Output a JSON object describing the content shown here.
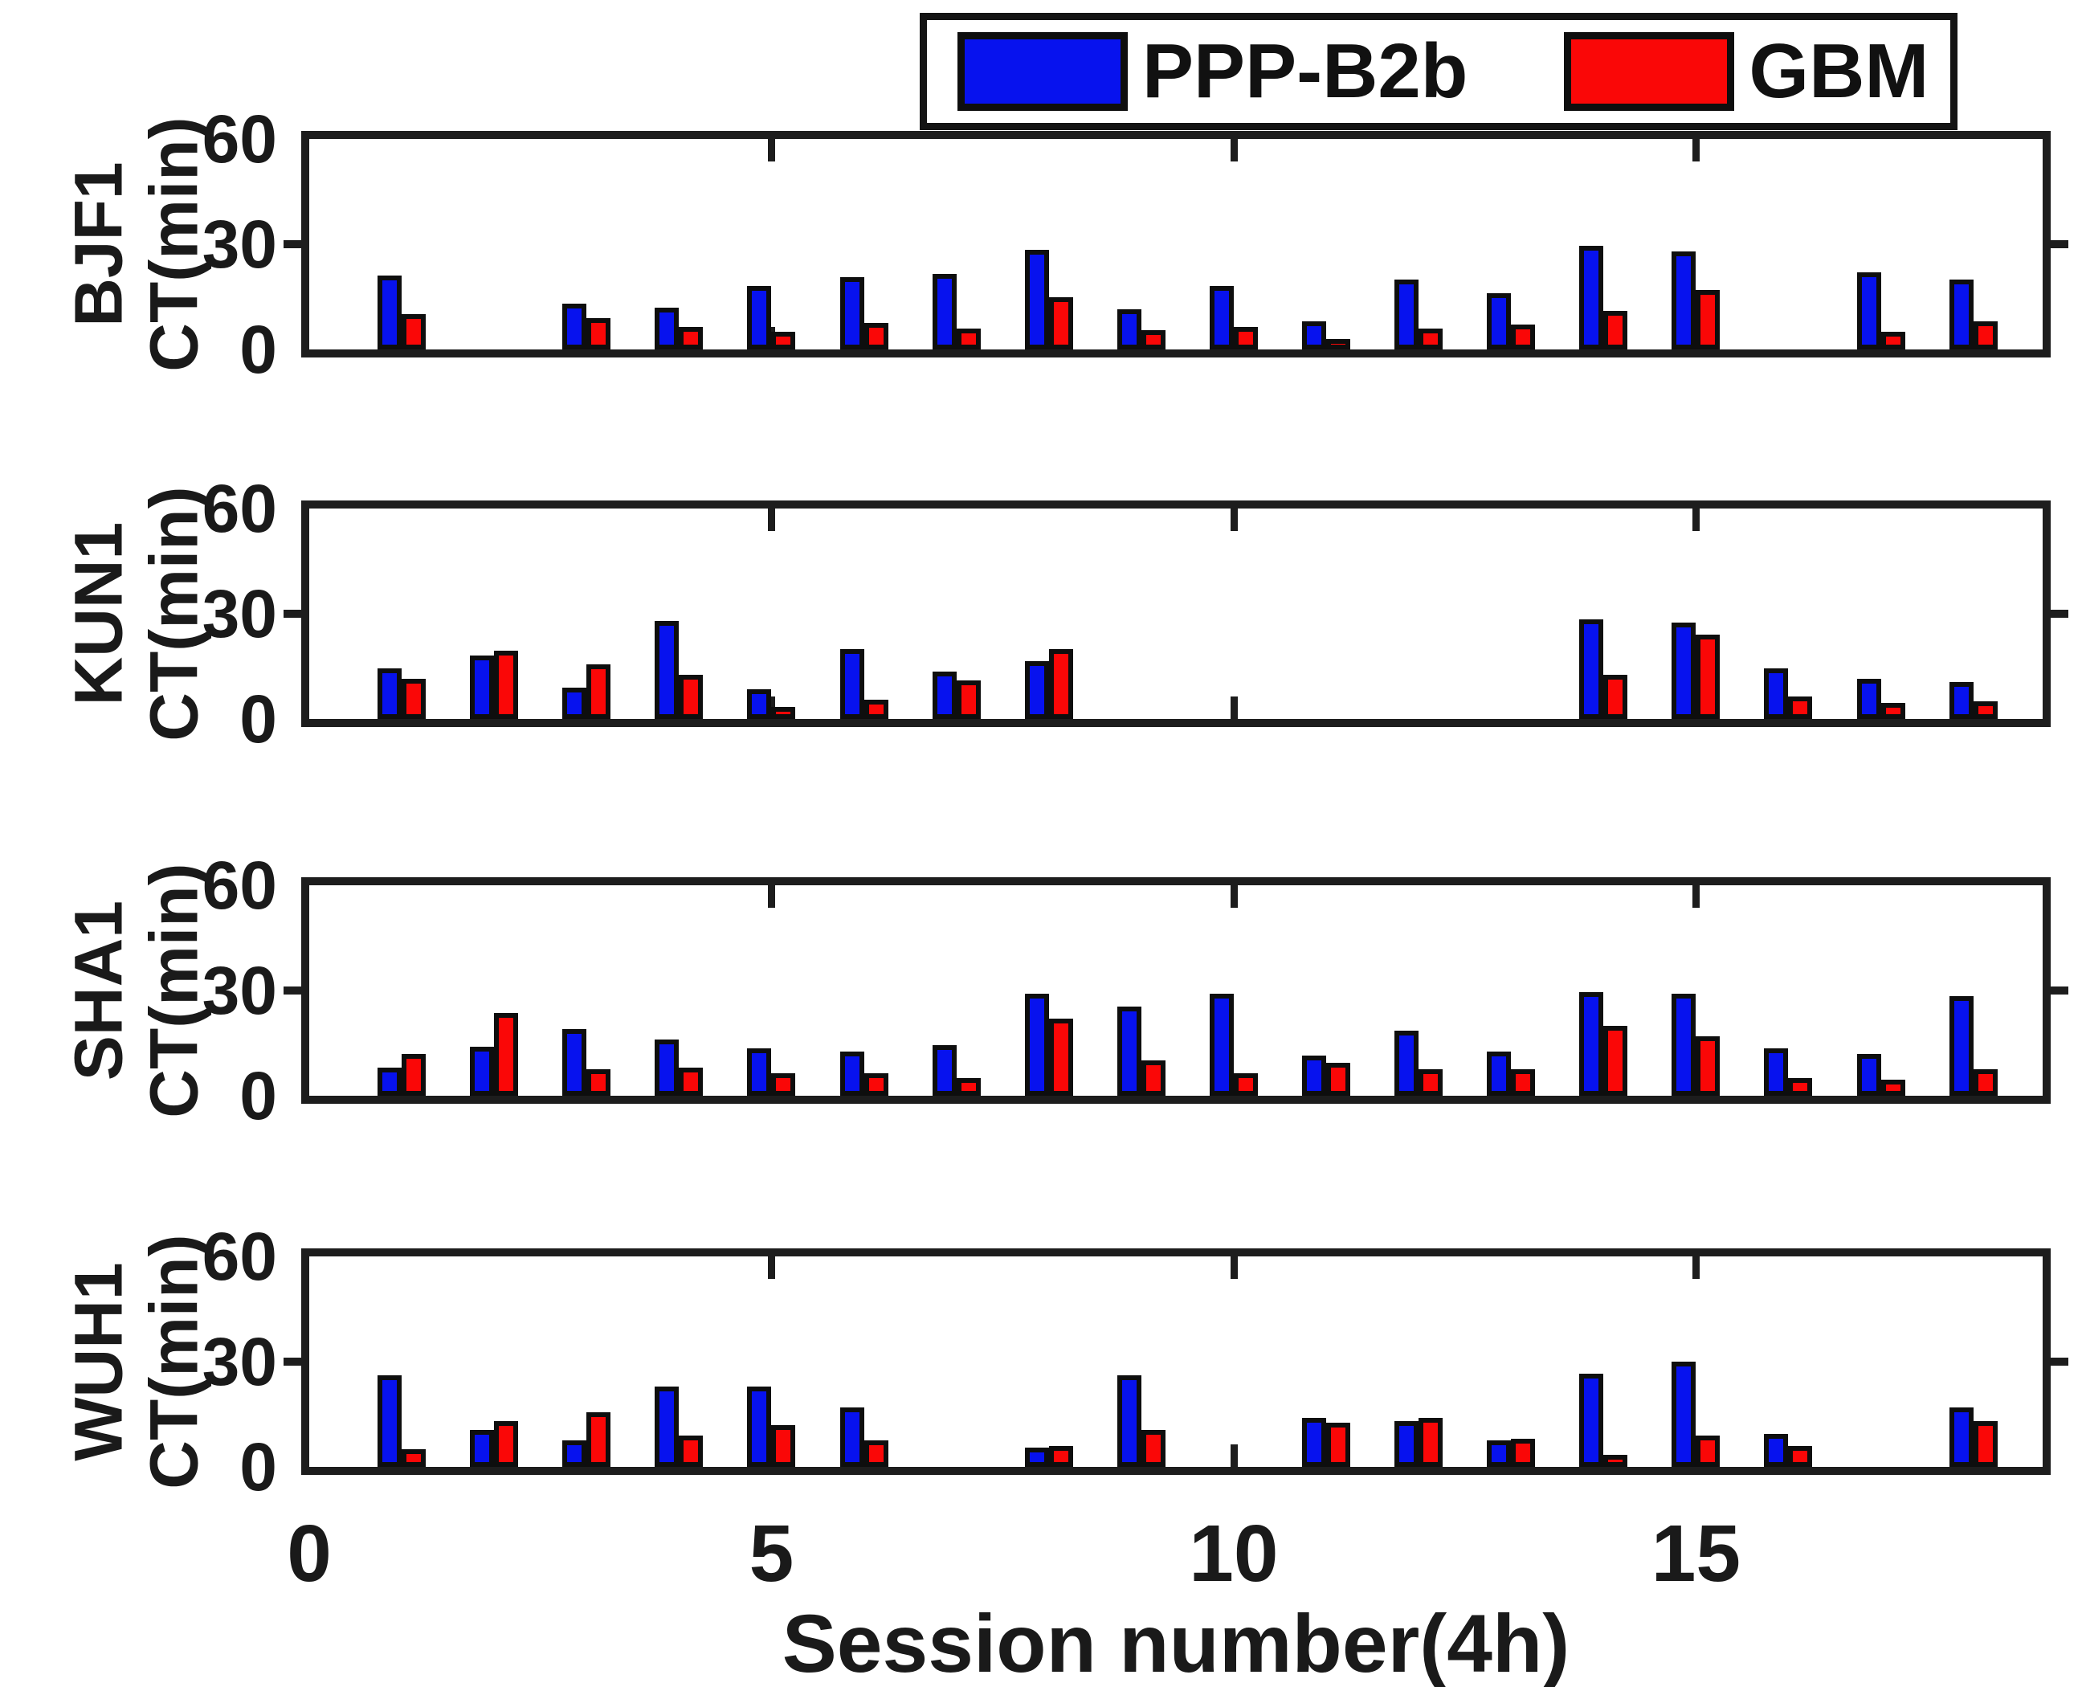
{
  "figure": {
    "xlabel": "Session number(4h)"
  },
  "legend": {
    "items": [
      {
        "label": "PPP-B2b",
        "color": "#0712ee"
      },
      {
        "label": "GBM",
        "color": "#fa0707"
      }
    ]
  },
  "chart_data": {
    "type": "bar",
    "title": "",
    "xlabel": "Session number(4h)",
    "ylabel_unit": "CT(min)",
    "xlim": [
      0,
      18.75
    ],
    "xticks": [
      0,
      5,
      10,
      15
    ],
    "ylim": [
      0,
      60
    ],
    "yticks": [
      0,
      30,
      60
    ],
    "grid": false,
    "legend_position": "top-center",
    "bar_colors": {
      "PPP-B2b": "#0712ee",
      "GBM": "#fa0707"
    },
    "sessions": [
      1,
      2,
      3,
      4,
      5,
      6,
      7,
      8,
      9,
      10,
      11,
      12,
      13,
      14,
      15,
      16,
      17,
      18
    ],
    "subplots": [
      {
        "station": "BJF1",
        "ylabel": "BJF1 CT(min)",
        "series": [
          {
            "name": "PPP-B2b",
            "values": [
              21,
              null,
              13,
              12,
              18,
              20.5,
              21.5,
              28.5,
              11.5,
              18,
              8,
              20,
              16,
              29.5,
              28,
              null,
              22,
              20
            ]
          },
          {
            "name": "GBM",
            "values": [
              10,
              null,
              9,
              6.5,
              5,
              7.5,
              6,
              15,
              5.5,
              6.5,
              3,
              6,
              7,
              11,
              17,
              null,
              5,
              8
            ]
          }
        ]
      },
      {
        "station": "KUN1",
        "ylabel": "KUN1 CT(min)",
        "series": [
          {
            "name": "PPP-B2b",
            "values": [
              14.5,
              18,
              9,
              28,
              8.5,
              20,
              13.5,
              16.5,
              null,
              null,
              null,
              null,
              null,
              28.5,
              27.5,
              14.5,
              11.5,
              10.5
            ]
          },
          {
            "name": "GBM",
            "values": [
              11.5,
              19.5,
              15.5,
              12.5,
              3.5,
              5.5,
              11,
              20,
              null,
              null,
              null,
              null,
              null,
              12.5,
              24,
              6.5,
              4.5,
              5
            ]
          }
        ]
      },
      {
        "station": "SHA1",
        "ylabel": "SHA1 CT(min)",
        "series": [
          {
            "name": "PPP-B2b",
            "values": [
              8,
              14,
              19,
              16,
              13.5,
              12.5,
              14.5,
              29,
              25.5,
              29,
              11.5,
              18.5,
              12.5,
              29.5,
              29,
              13.5,
              12,
              28.5
            ]
          },
          {
            "name": "GBM",
            "values": [
              12,
              23.5,
              7.5,
              8,
              6.5,
              6.5,
              5,
              22,
              10,
              6.5,
              9.5,
              7.5,
              7.5,
              20,
              17,
              5,
              4.5,
              7.5
            ]
          }
        ]
      },
      {
        "station": "WUH1",
        "ylabel": "WUH1 CT(min)",
        "series": [
          {
            "name": "PPP-B2b",
            "values": [
              26,
              10.5,
              7.5,
              23,
              23,
              17,
              null,
              5.5,
              26,
              null,
              14,
              13,
              7.5,
              26.5,
              30,
              9.5,
              null,
              17
            ]
          },
          {
            "name": "GBM",
            "values": [
              5,
              13,
              15.5,
              9,
              12,
              7.5,
              null,
              6,
              10.5,
              null,
              12.5,
              14,
              8,
              3.5,
              9,
              6,
              null,
              13
            ]
          }
        ]
      }
    ]
  }
}
